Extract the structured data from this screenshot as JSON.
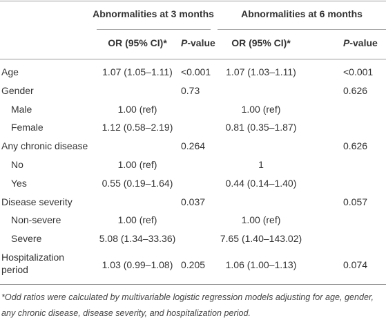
{
  "table": {
    "groups": [
      "Abnormalities at 3 months",
      "Abnormalities at 6 months"
    ],
    "columns": [
      "OR (95% CI)*",
      {
        "italic": "P",
        "rest": "-value"
      },
      "OR (95% CI)*",
      {
        "italic": "P",
        "rest": "-value"
      }
    ],
    "rows": [
      {
        "label": "Age",
        "values": [
          "1.07 (1.05–1.11)",
          "<0.001",
          "1.07 (1.03–1.11)",
          "<0.001"
        ]
      },
      {
        "label": "Gender",
        "values": [
          null,
          "0.73",
          null,
          "0.626"
        ],
        "levels": [
          {
            "label": "Male",
            "values": [
              "1.00 (ref)",
              null,
              "1.00 (ref)",
              null
            ]
          },
          {
            "label": "Female",
            "values": [
              "1.12 (0.58–2.19)",
              null,
              "0.81 (0.35–1.87)",
              null
            ]
          }
        ]
      },
      {
        "label": "Any chronic disease",
        "values": [
          null,
          "0.264",
          null,
          "0.626"
        ],
        "levels": [
          {
            "label": "No",
            "values": [
              "1.00 (ref)",
              null,
              "1",
              null
            ]
          },
          {
            "label": "Yes",
            "values": [
              "0.55 (0.19–1.64)",
              null,
              "0.44 (0.14–1.40)",
              null
            ]
          }
        ]
      },
      {
        "label": "Disease severity",
        "values": [
          null,
          "0.037",
          null,
          "0.057"
        ],
        "levels": [
          {
            "label": "Non-severe",
            "values": [
              "1.00 (ref)",
              null,
              "1.00 (ref)",
              null
            ]
          },
          {
            "label": "Severe",
            "values": [
              "5.08 (1.34–33.36)",
              null,
              "7.65 (1.40–143.02)",
              null
            ]
          }
        ]
      },
      {
        "label": "Hospitalization period",
        "values": [
          "1.03 (0.99–1.08)",
          "0.205",
          "1.06 (1.00–1.13)",
          "0.074"
        ]
      }
    ],
    "footnote": "*Odd ratios were calculated by multivariable logistic regression models adjusting for age, gender, any chronic disease, disease severity, and hospitalization period."
  }
}
